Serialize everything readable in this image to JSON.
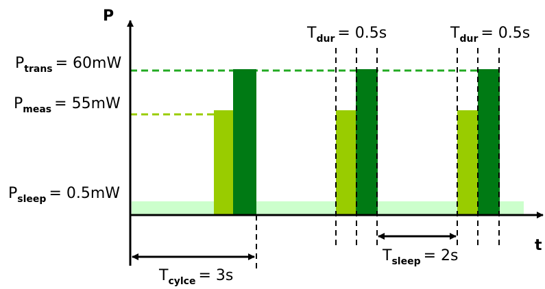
{
  "axes": {
    "y_label": "P",
    "x_label": "t"
  },
  "power_levels": {
    "trans": {
      "symbol": "P",
      "subscript": "trans",
      "value": "= 60mW"
    },
    "meas": {
      "symbol": "P",
      "subscript": "meas",
      "value": "= 55mW"
    },
    "sleep": {
      "symbol": "P",
      "subscript": "sleep",
      "value": "= 0.5mW"
    }
  },
  "durations": {
    "dur_1": {
      "symbol": "T",
      "subscript": "dur",
      "value": "= 0.5s"
    },
    "dur_2": {
      "symbol": "T",
      "subscript": "dur",
      "value": "= 0.5s"
    },
    "cycle": {
      "symbol": "T",
      "subscript": "cylce",
      "value": "= 3s"
    },
    "sleep": {
      "symbol": "T",
      "subscript": "sleep",
      "value": "= 2s"
    }
  },
  "colors": {
    "trans": "#007a14",
    "meas": "#99cc00",
    "sleep": "#ccffcc",
    "trans_dashed": "#22aa22",
    "meas_dashed": "#99cc00"
  }
}
